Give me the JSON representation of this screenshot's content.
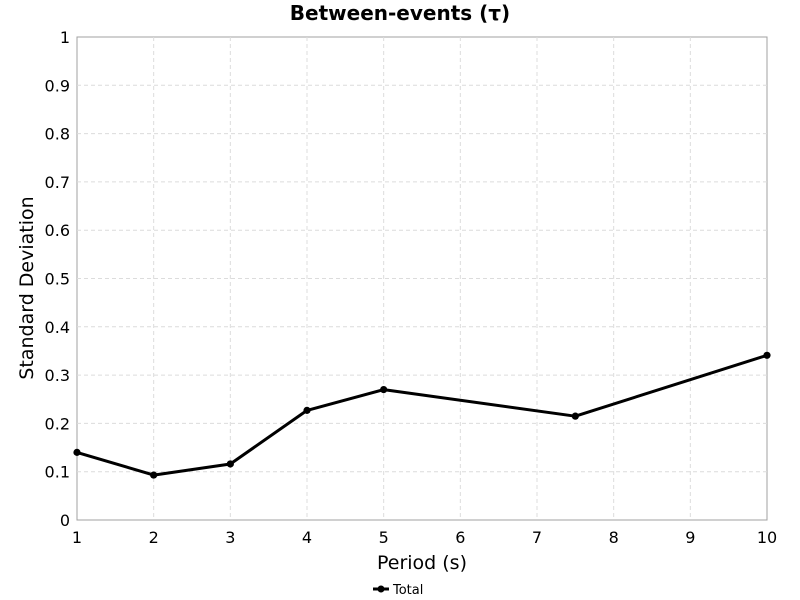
{
  "chart_data": {
    "type": "line",
    "title": "Between-events (τ)",
    "xlabel": "Period (s)",
    "ylabel": "Standard Deviation",
    "xlim": [
      1,
      10
    ],
    "ylim": [
      0,
      1
    ],
    "x_ticks": [
      1,
      2,
      3,
      4,
      5,
      6,
      7,
      8,
      9,
      10
    ],
    "y_ticks": [
      0,
      0.1,
      0.2,
      0.3,
      0.4,
      0.5,
      0.6,
      0.7,
      0.8,
      0.9,
      1
    ],
    "y_tick_labels": [
      "0",
      "0.1",
      "0.2",
      "0.3",
      "0.4",
      "0.5",
      "0.6",
      "0.7",
      "0.8",
      "0.9",
      "1"
    ],
    "grid": true,
    "legend_position": "bottom-center",
    "series": [
      {
        "name": "Total",
        "color": "#000000",
        "marker": "circle",
        "x": [
          1,
          2,
          3,
          4,
          5,
          7.5,
          10
        ],
        "y": [
          0.14,
          0.093,
          0.116,
          0.227,
          0.27,
          0.215,
          0.341
        ]
      }
    ]
  }
}
